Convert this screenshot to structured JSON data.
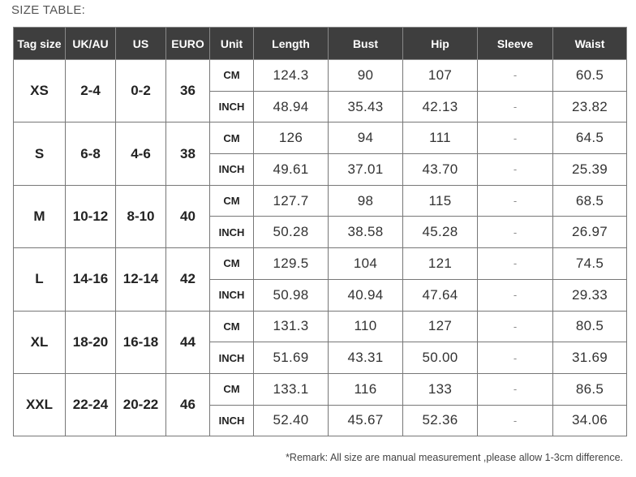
{
  "title": "SIZE TABLE:",
  "table": {
    "headers": [
      "Tag size",
      "UK/AU",
      "US",
      "EURO",
      "Unit",
      "Length",
      "Bust",
      "Hip",
      "Sleeve",
      "Waist"
    ],
    "groups": [
      {
        "tag": "XS",
        "uk": "2-4",
        "us": "0-2",
        "euro": "36",
        "rows": [
          {
            "unit": "CM",
            "length": "124.3",
            "bust": "90",
            "hip": "107",
            "sleeve": "-",
            "waist": "60.5"
          },
          {
            "unit": "INCH",
            "length": "48.94",
            "bust": "35.43",
            "hip": "42.13",
            "sleeve": "-",
            "waist": "23.82"
          }
        ]
      },
      {
        "tag": "S",
        "uk": "6-8",
        "us": "4-6",
        "euro": "38",
        "rows": [
          {
            "unit": "CM",
            "length": "126",
            "bust": "94",
            "hip": "111",
            "sleeve": "-",
            "waist": "64.5"
          },
          {
            "unit": "INCH",
            "length": "49.61",
            "bust": "37.01",
            "hip": "43.70",
            "sleeve": "-",
            "waist": "25.39"
          }
        ]
      },
      {
        "tag": "M",
        "uk": "10-12",
        "us": "8-10",
        "euro": "40",
        "rows": [
          {
            "unit": "CM",
            "length": "127.7",
            "bust": "98",
            "hip": "115",
            "sleeve": "-",
            "waist": "68.5"
          },
          {
            "unit": "INCH",
            "length": "50.28",
            "bust": "38.58",
            "hip": "45.28",
            "sleeve": "-",
            "waist": "26.97"
          }
        ]
      },
      {
        "tag": "L",
        "uk": "14-16",
        "us": "12-14",
        "euro": "42",
        "rows": [
          {
            "unit": "CM",
            "length": "129.5",
            "bust": "104",
            "hip": "121",
            "sleeve": "-",
            "waist": "74.5"
          },
          {
            "unit": "INCH",
            "length": "50.98",
            "bust": "40.94",
            "hip": "47.64",
            "sleeve": "-",
            "waist": "29.33"
          }
        ]
      },
      {
        "tag": "XL",
        "uk": "18-20",
        "us": "16-18",
        "euro": "44",
        "rows": [
          {
            "unit": "CM",
            "length": "131.3",
            "bust": "110",
            "hip": "127",
            "sleeve": "-",
            "waist": "80.5"
          },
          {
            "unit": "INCH",
            "length": "51.69",
            "bust": "43.31",
            "hip": "50.00",
            "sleeve": "-",
            "waist": "31.69"
          }
        ]
      },
      {
        "tag": "XXL",
        "uk": "22-24",
        "us": "20-22",
        "euro": "46",
        "rows": [
          {
            "unit": "CM",
            "length": "133.1",
            "bust": "116",
            "hip": "133",
            "sleeve": "-",
            "waist": "86.5"
          },
          {
            "unit": "INCH",
            "length": "52.40",
            "bust": "45.67",
            "hip": "52.36",
            "sleeve": "-",
            "waist": "34.06"
          }
        ]
      }
    ]
  },
  "remark": "*Remark: All size are manual measurement ,please allow 1-3cm difference.",
  "colors": {
    "header_bg": "#3e3e3e",
    "header_text": "#ffffff",
    "border": "#777777"
  }
}
